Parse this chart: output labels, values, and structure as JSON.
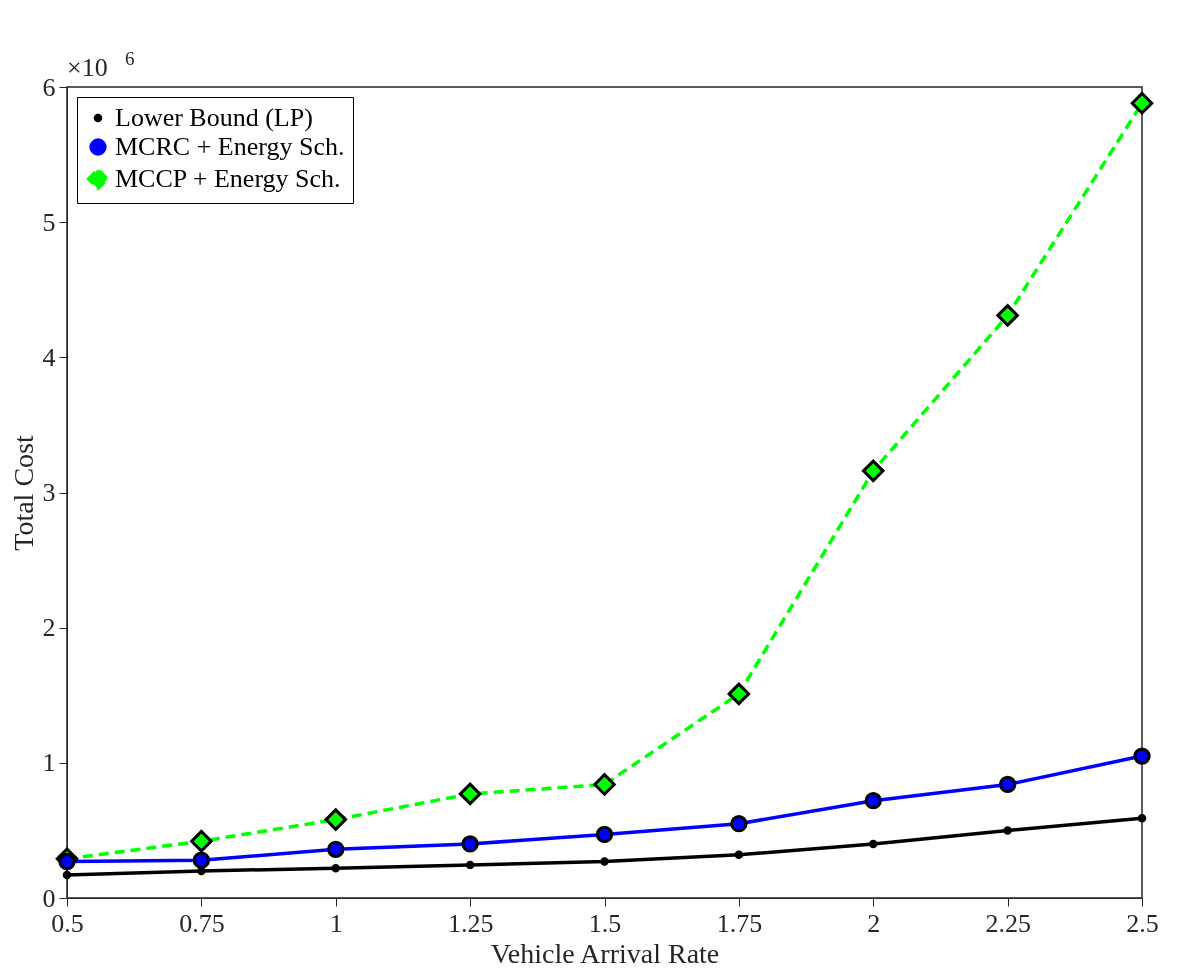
{
  "chart_data": {
    "type": "line",
    "xlabel": "Vehicle Arrival Rate",
    "ylabel": "Total Cost",
    "annotations": [
      "×10$^{6}$"
    ],
    "x": [
      0.5,
      0.75,
      1,
      1.25,
      1.5,
      1.75,
      2,
      2.25,
      2.5
    ],
    "xlim": [
      0.5,
      2.5
    ],
    "xticks": [
      0.5,
      0.75,
      1,
      1.25,
      1.5,
      1.75,
      2,
      2.25,
      2.5
    ],
    "ylim": [
      0,
      6
    ],
    "yticks": [
      0,
      1,
      2,
      3,
      4,
      5,
      6
    ],
    "grid": false,
    "legend": "top left",
    "series": [
      {
        "name": "Lower Bound (LP)",
        "color": "#000000",
        "marker": "circle",
        "line_style": "solid",
        "values": [
          0.17,
          0.2,
          0.22,
          0.245,
          0.27,
          0.32,
          0.4,
          0.5,
          0.59
        ]
      },
      {
        "name": "MCRC + Energy Sch.",
        "color": "#0000ff",
        "marker": "circle",
        "line_style": "solid",
        "values": [
          0.27,
          0.28,
          0.36,
          0.4,
          0.47,
          0.55,
          0.72,
          0.84,
          1.05
        ]
      },
      {
        "name": "MCCP + Energy Sch.",
        "color": "#00ff00",
        "marker": "diamond",
        "line_style": "dashed",
        "values": [
          0.29,
          0.42,
          0.58,
          0.77,
          0.84,
          1.51,
          3.16,
          4.31,
          5.88
        ]
      }
    ]
  }
}
